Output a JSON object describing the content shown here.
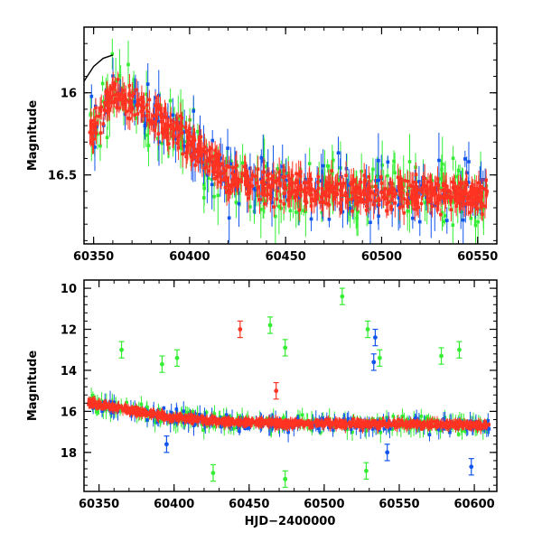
{
  "chart_data": [
    {
      "type": "scatter",
      "title": "",
      "xlabel": "",
      "ylabel": "Magnitude",
      "xlim": [
        60345,
        60560
      ],
      "ylim": [
        16.92,
        15.6
      ],
      "y_inverted": true,
      "grid": false,
      "x_ticks": [
        60350,
        60400,
        60450,
        60500,
        60550
      ],
      "y_ticks": [
        16,
        16.5
      ],
      "x_tick_labels": [
        "60350",
        "60400",
        "60450",
        "60500",
        "60550"
      ],
      "y_tick_labels": [
        "16",
        "16.5"
      ],
      "series_colors": {
        "green": "#33ee33",
        "blue": "#1155ee",
        "red": "#ff3322"
      },
      "trend": [
        {
          "x": 60345,
          "y": 16.3
        },
        {
          "x": 60360,
          "y": 16.0
        },
        {
          "x": 60380,
          "y": 16.12
        },
        {
          "x": 60400,
          "y": 16.3
        },
        {
          "x": 60420,
          "y": 16.52
        },
        {
          "x": 60450,
          "y": 16.58
        },
        {
          "x": 60500,
          "y": 16.62
        },
        {
          "x": 60560,
          "y": 16.62
        }
      ],
      "model_curve": [
        {
          "x": 60345,
          "y": 15.93
        },
        {
          "x": 60350,
          "y": 15.84
        },
        {
          "x": 60355,
          "y": 15.79
        },
        {
          "x": 60360,
          "y": 15.77
        }
      ]
    },
    {
      "type": "scatter",
      "title": "",
      "xlabel": "HJD−2400000",
      "ylabel": "Magnitude",
      "xlim": [
        60340,
        60615
      ],
      "ylim": [
        19.9,
        9.6
      ],
      "y_inverted": true,
      "grid": false,
      "x_ticks": [
        60350,
        60400,
        60450,
        60500,
        60550,
        60600
      ],
      "y_ticks": [
        10,
        12,
        14,
        16,
        18
      ],
      "x_tick_labels": [
        "60350",
        "60400",
        "60450",
        "60500",
        "60550",
        "60600"
      ],
      "y_tick_labels": [
        "10",
        "12",
        "14",
        "16",
        "18"
      ],
      "series_colors": {
        "green": "#33ee33",
        "blue": "#1155ee",
        "red": "#ff3322"
      },
      "trend": [
        {
          "x": 60345,
          "y": 15.6
        },
        {
          "x": 60360,
          "y": 15.8
        },
        {
          "x": 60400,
          "y": 16.3
        },
        {
          "x": 60440,
          "y": 16.55
        },
        {
          "x": 60500,
          "y": 16.6
        },
        {
          "x": 60560,
          "y": 16.62
        },
        {
          "x": 60605,
          "y": 16.7
        }
      ],
      "outliers": [
        {
          "series": "red",
          "x": 60444,
          "y": 12.0
        },
        {
          "series": "red",
          "x": 60468,
          "y": 15.0
        },
        {
          "series": "green",
          "x": 60365,
          "y": 13.0
        },
        {
          "series": "green",
          "x": 60392,
          "y": 13.7
        },
        {
          "series": "green",
          "x": 60402,
          "y": 13.4
        },
        {
          "series": "green",
          "x": 60464,
          "y": 11.8
        },
        {
          "series": "green",
          "x": 60474,
          "y": 12.9
        },
        {
          "series": "green",
          "x": 60512,
          "y": 10.4
        },
        {
          "series": "green",
          "x": 60529,
          "y": 12.0
        },
        {
          "series": "green",
          "x": 60537,
          "y": 13.4
        },
        {
          "series": "green",
          "x": 60578,
          "y": 13.3
        },
        {
          "series": "green",
          "x": 60590,
          "y": 13.0
        },
        {
          "series": "green",
          "x": 60528,
          "y": 18.9
        },
        {
          "series": "green",
          "x": 60474,
          "y": 19.3
        },
        {
          "series": "green",
          "x": 60426,
          "y": 19.0
        },
        {
          "series": "blue",
          "x": 60534,
          "y": 12.4
        },
        {
          "series": "blue",
          "x": 60533,
          "y": 13.6
        },
        {
          "series": "blue",
          "x": 60598,
          "y": 18.7
        },
        {
          "series": "blue",
          "x": 60542,
          "y": 18.0
        },
        {
          "series": "blue",
          "x": 60395,
          "y": 17.6
        }
      ]
    }
  ]
}
